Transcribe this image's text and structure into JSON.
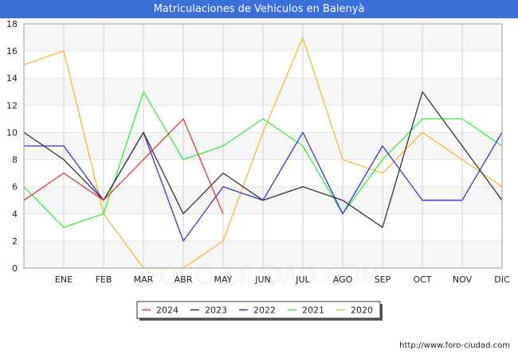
{
  "header": {
    "title": "Matriculaciones de Vehiculos en Balenyà"
  },
  "footer": {
    "url": "http://www.foro-ciudad.com"
  },
  "watermark": "FORO-CIUDAD.COM",
  "chart_data": {
    "type": "line",
    "title": "Matriculaciones de Vehiculos en Balenyà",
    "xlabel": "",
    "ylabel": "",
    "categories": [
      "",
      "ENE",
      "FEB",
      "MAR",
      "ABR",
      "MAY",
      "JUN",
      "JUL",
      "AGO",
      "SEP",
      "OCT",
      "NOV",
      "DIC"
    ],
    "ylim": [
      0,
      18
    ],
    "yticks": [
      0,
      2,
      4,
      6,
      8,
      10,
      12,
      14,
      16,
      18
    ],
    "grid": true,
    "legend_position": "bottom-center",
    "series": [
      {
        "name": "2024",
        "color": "#ee3333",
        "values": [
          5,
          7,
          5,
          8,
          11,
          4,
          null,
          null,
          null,
          null,
          null,
          null,
          null
        ]
      },
      {
        "name": "2023",
        "color": "#333333",
        "values": [
          10,
          8,
          5,
          10,
          4,
          7,
          5,
          6,
          5,
          3,
          13,
          9,
          5
        ]
      },
      {
        "name": "2022",
        "color": "#3333ee",
        "values": [
          9,
          9,
          5,
          10,
          2,
          6,
          5,
          10,
          4,
          9,
          5,
          5,
          10
        ]
      },
      {
        "name": "2021",
        "color": "#33ee33",
        "values": [
          6,
          3,
          4,
          13,
          8,
          9,
          11,
          9,
          4,
          8,
          11,
          11,
          9
        ]
      },
      {
        "name": "2020",
        "color": "#f7b733",
        "values": [
          15,
          16,
          4,
          0,
          0,
          2,
          10,
          17,
          8,
          7,
          10,
          8,
          6
        ]
      }
    ]
  }
}
